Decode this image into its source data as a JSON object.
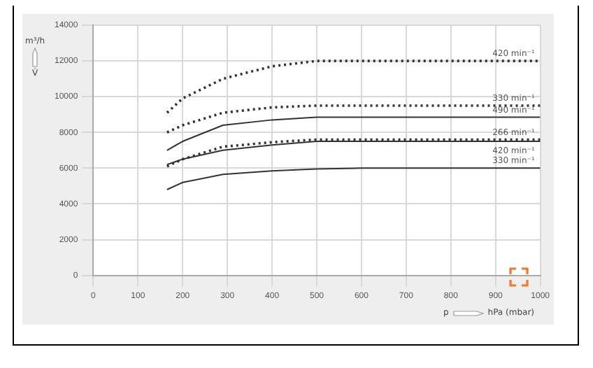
{
  "chart_data": {
    "type": "line",
    "xlabel": "p hPa (mbar)",
    "ylabel": "m³/h V̇",
    "xlim": [
      0,
      1000
    ],
    "xticks": [
      0,
      100,
      200,
      300,
      400,
      500,
      600,
      700,
      800,
      900,
      1000
    ],
    "ylim": [
      0,
      14000
    ],
    "yticks": [
      0,
      2000,
      4000,
      6000,
      8000,
      10000,
      12000,
      14000
    ],
    "grid": true,
    "legend": false,
    "marker": "none",
    "series": [
      {
        "name": "420 min⁻¹",
        "color": "#333333",
        "line_style": "dotted",
        "x": [
          165,
          200,
          290,
          400,
          500,
          600,
          1000
        ],
        "values": [
          9100,
          9900,
          11000,
          11700,
          12000,
          12000,
          12000
        ]
      },
      {
        "name": "330 min⁻¹",
        "color": "#333333",
        "line_style": "dotted",
        "x": [
          165,
          200,
          290,
          400,
          500,
          600,
          1000
        ],
        "values": [
          8000,
          8400,
          9100,
          9400,
          9500,
          9500,
          9500
        ]
      },
      {
        "name": "490 min⁻¹",
        "color": "#333333",
        "line_style": "solid",
        "x": [
          165,
          200,
          290,
          400,
          500,
          600,
          1000
        ],
        "values": [
          7000,
          7500,
          8400,
          8700,
          8850,
          8850,
          8850
        ]
      },
      {
        "name": "266 min⁻¹",
        "color": "#333333",
        "line_style": "dotted",
        "x": [
          165,
          200,
          290,
          400,
          500,
          600,
          1000
        ],
        "values": [
          6100,
          6500,
          7200,
          7450,
          7600,
          7600,
          7600
        ]
      },
      {
        "name": "420 min⁻¹",
        "color": "#333333",
        "line_style": "solid",
        "x": [
          165,
          200,
          290,
          400,
          500,
          600,
          1000
        ],
        "values": [
          6200,
          6500,
          7000,
          7300,
          7500,
          7500,
          7500
        ]
      },
      {
        "name": "330 min⁻¹",
        "color": "#333333",
        "line_style": "solid",
        "x": [
          165,
          200,
          290,
          400,
          500,
          600,
          1000
        ],
        "values": [
          4800,
          5200,
          5650,
          5850,
          5950,
          6000,
          6000
        ]
      }
    ]
  }
}
